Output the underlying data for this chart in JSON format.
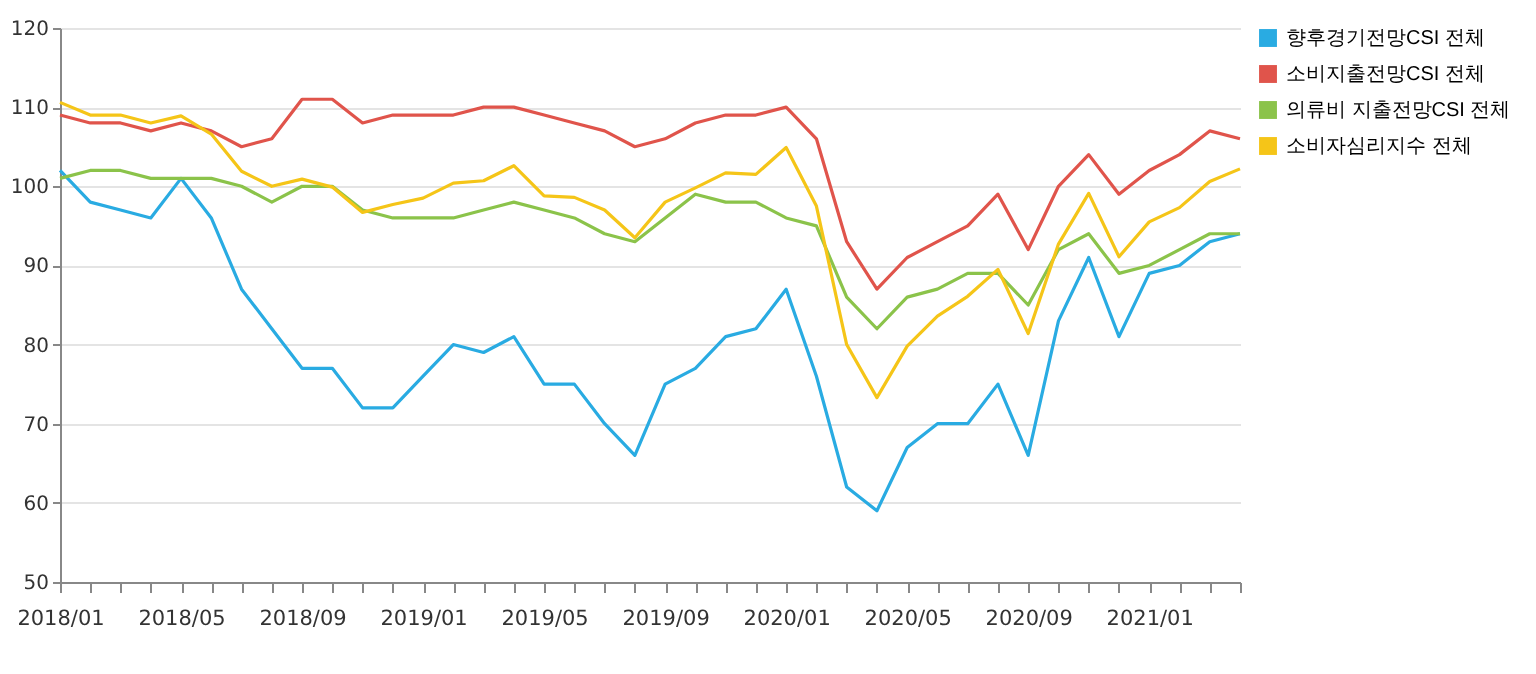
{
  "chart_data": {
    "type": "line",
    "categories": [
      "2018/01",
      null,
      null,
      null,
      "2018/05",
      null,
      null,
      null,
      "2018/09",
      null,
      null,
      null,
      "2019/01",
      null,
      null,
      null,
      "2019/05",
      null,
      null,
      null,
      "2019/09",
      null,
      null,
      null,
      "2020/01",
      null,
      null,
      null,
      "2020/05",
      null,
      null,
      null,
      "2020/09",
      null,
      null,
      null,
      "2021/01",
      null,
      null,
      null
    ],
    "series": [
      {
        "name": "향후경기전망CSI 전체",
        "color": "#29abe2",
        "values": [
          102,
          98,
          97,
          96,
          101,
          96,
          87,
          82,
          77,
          77,
          72,
          72,
          76,
          80,
          79,
          81,
          75,
          75,
          70,
          66,
          75,
          77,
          81,
          82,
          87,
          76,
          62,
          59,
          67,
          70,
          70,
          75,
          66,
          83,
          91,
          81,
          89,
          90,
          93,
          94
        ]
      },
      {
        "name": "소비지출전망CSI 전체",
        "color": "#e0544b",
        "values": [
          109,
          108,
          108,
          107,
          108,
          107,
          105,
          106,
          111,
          111,
          108,
          109,
          109,
          109,
          110,
          110,
          109,
          108,
          107,
          105,
          106,
          108,
          109,
          109,
          110,
          106,
          93,
          87,
          91,
          93,
          95,
          99,
          92,
          100,
          104,
          99,
          102,
          104,
          107,
          106
        ]
      },
      {
        "name": "의류비 지출전망CSI 전체",
        "color": "#8bc34a",
        "values": [
          101,
          102,
          102,
          101,
          101,
          101,
          100,
          98,
          100,
          100,
          97,
          96,
          96,
          96,
          97,
          98,
          97,
          96,
          94,
          93,
          96,
          99,
          98,
          98,
          96,
          95,
          86,
          82,
          86,
          87,
          89,
          89,
          85,
          92,
          94,
          89,
          90,
          92,
          94,
          94
        ]
      },
      {
        "name": "소비자심리지수 전체",
        "color": "#f5c518",
        "values": [
          110.6,
          109,
          109,
          108,
          108.9,
          106.6,
          101.9,
          100,
          100.9,
          99.9,
          96.7,
          97.7,
          98.5,
          100.4,
          100.7,
          102.6,
          98.8,
          98.6,
          97,
          93.5,
          98,
          99.8,
          101.7,
          101.5,
          104.9,
          97.5,
          80,
          73.3,
          79.8,
          83.6,
          86.1,
          89.5,
          81.4,
          92.7,
          99.1,
          91.1,
          95.5,
          97.3,
          100.6,
          102.2
        ]
      }
    ],
    "ylim": [
      50,
      120
    ],
    "yticks": [
      50,
      60,
      70,
      80,
      90,
      100,
      110,
      120
    ],
    "grid": "y",
    "legend": "top right"
  }
}
